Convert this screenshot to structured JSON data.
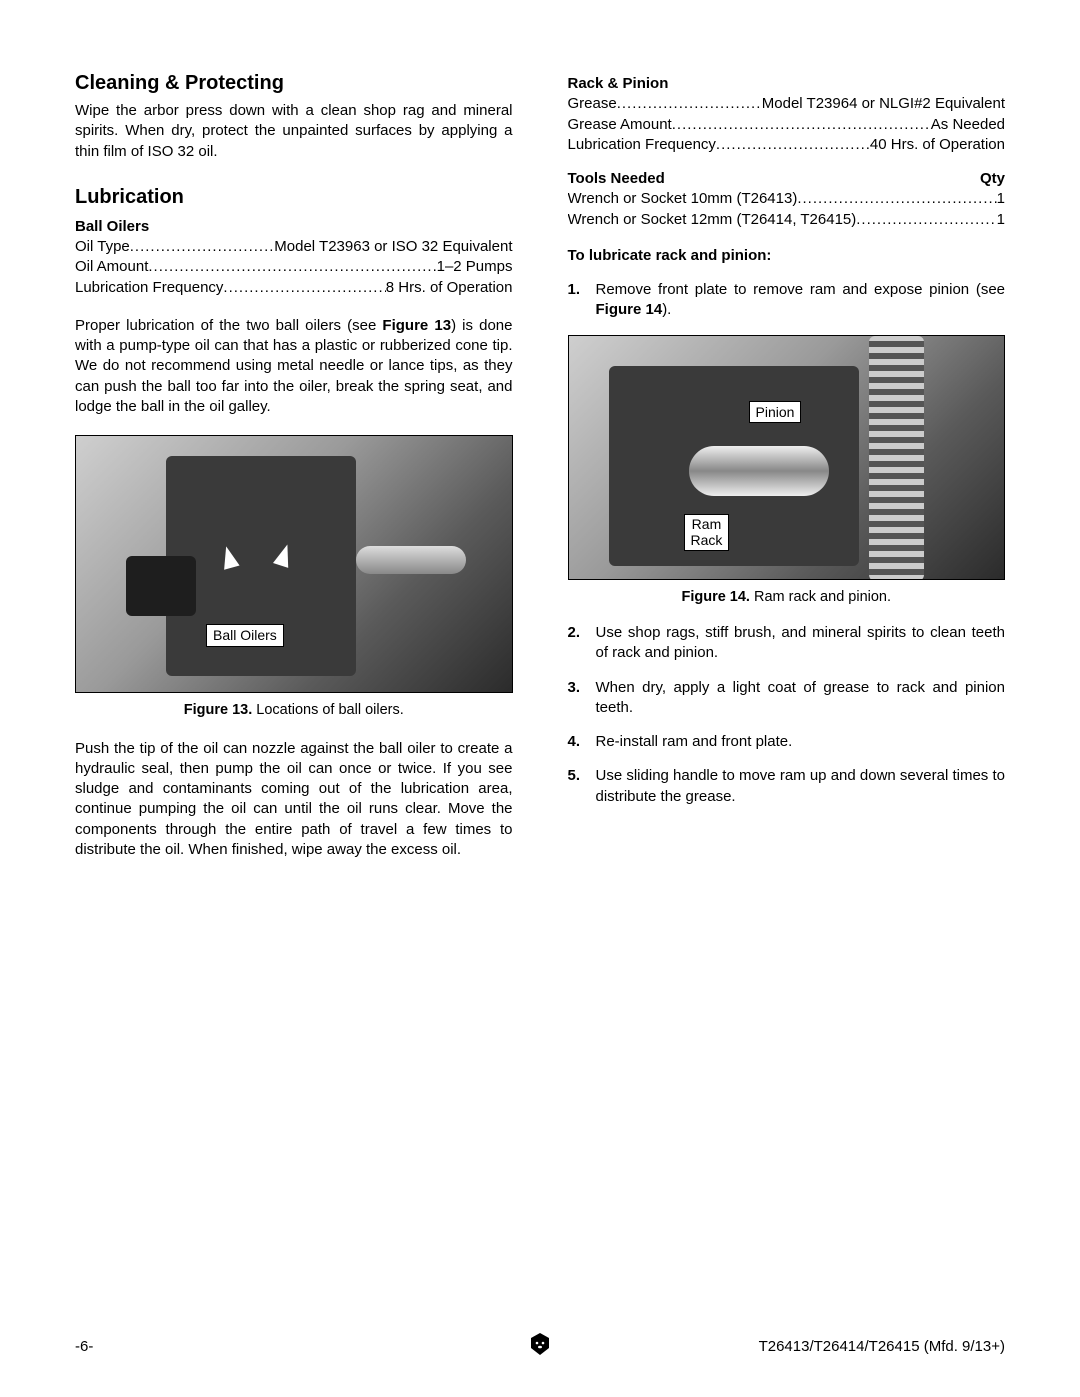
{
  "left": {
    "h1": "Cleaning & Protecting",
    "p1": "Wipe the arbor press down with a clean shop rag and mineral spirits. When dry, protect the unpainted surfaces by applying a thin film of ISO 32 oil.",
    "h2": "Lubrication",
    "sub1": "Ball Oilers",
    "rows1": [
      {
        "l": "Oil Type",
        "v": "Model T23963 or ISO 32 Equivalent"
      },
      {
        "l": "Oil Amount",
        "v": "1–2 Pumps"
      },
      {
        "l": "Lubrication Frequency",
        "v": "8 Hrs. of Operation"
      }
    ],
    "p2a": "Proper lubrication of the two ball oilers (see ",
    "p2b": "Figure 13",
    "p2c": ") is done with a pump-type oil can that has a plastic or rubberized cone tip. We do not recommend using metal needle or lance tips, as they can push the ball too far into the oiler, break the spring seat, and lodge the ball in the oil galley.",
    "fig13label": "Ball Oilers",
    "fig13cap_b": "Figure 13.",
    "fig13cap": " Locations of ball oilers.",
    "p3": "Push the tip of the oil can nozzle against the ball oiler to create a hydraulic seal, then pump the oil can once or twice. If you see sludge and contaminants coming out of the lubrication area, continue pumping the oil can until the oil runs clear. Move the components through the entire path of travel a few times to distribute the oil. When finished, wipe away the excess oil."
  },
  "right": {
    "sub1": "Rack & Pinion",
    "rows1": [
      {
        "l": "Grease",
        "v": "Model T23964 or NLGI#2 Equivalent"
      },
      {
        "l": "Grease Amount",
        "v": "As Needed"
      },
      {
        "l": "Lubrication Frequency",
        "v": "40 Hrs. of Operation"
      }
    ],
    "tools_h": "Tools Needed",
    "qty_h": "Qty",
    "tools": [
      {
        "l": "Wrench or Socket 10mm (T26413)",
        "v": "1"
      },
      {
        "l": "Wrench or Socket 12mm (T26414, T26415)",
        "v": "1"
      }
    ],
    "sub2": "To lubricate rack and pinion:",
    "step1a": "Remove front plate to remove ram and expose pinion (see ",
    "step1b": "Figure 14",
    "step1c": ").",
    "fig14_pinion": "Pinion",
    "fig14_ram": "Ram\nRack",
    "fig14cap_b": "Figure 14.",
    "fig14cap": " Ram rack and pinion.",
    "steps_rest": [
      {
        "n": "2.",
        "t": "Use shop rags, stiff brush, and mineral spirits to clean teeth of rack and pinion."
      },
      {
        "n": "3.",
        "t": "When dry, apply a light coat of grease to rack and pinion teeth."
      },
      {
        "n": "4.",
        "t": "Re-install ram and front plate."
      },
      {
        "n": "5.",
        "t": "Use sliding handle to move ram up and down several times to distribute the grease."
      }
    ]
  },
  "footer": {
    "left": "-6-",
    "right": "T26413/T26414/T26415 (Mfd. 9/13+)"
  }
}
